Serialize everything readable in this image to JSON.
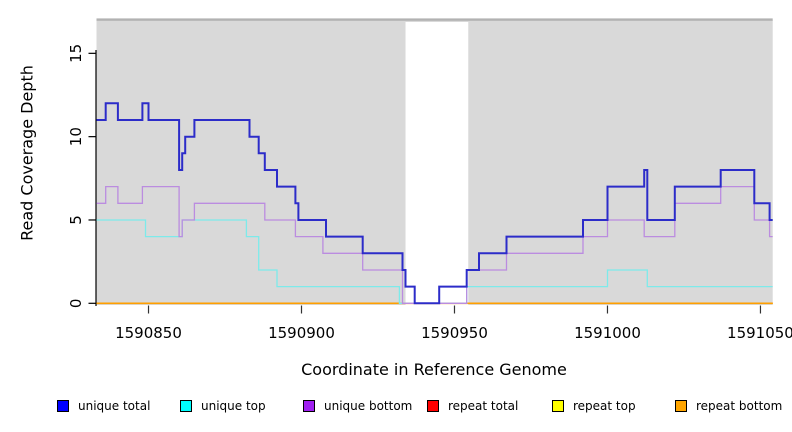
{
  "chart_data": {
    "type": "line",
    "subtype": "step-coverage-plot",
    "title": "",
    "xlabel": "Coordinate in Reference Genome",
    "ylabel": "Read Coverage Depth",
    "xlim": [
      1590833,
      1591054
    ],
    "ylim": [
      0,
      17
    ],
    "grid": false,
    "x_tick_values": [
      1590850,
      1590900,
      1590950,
      1591000,
      1591050
    ],
    "x_tick_labels": [
      "1590850",
      "1590900",
      "1590950",
      "1591000",
      "1591050"
    ],
    "y_tick_values": [
      0,
      5,
      10,
      15
    ],
    "y_tick_labels": [
      "0",
      "5",
      "10",
      "15"
    ],
    "plot_bg_color": "#d9d9d9",
    "top_border_color": "#b2b2b2",
    "highlight_band": {
      "x0": 1590934,
      "x1": 1590954.5,
      "color": "#ffffff"
    },
    "series": [
      {
        "name": "repeat total",
        "color": "#ff0000",
        "width": 1.3,
        "steps": [
          [
            1590833,
            0
          ]
        ]
      },
      {
        "name": "repeat top",
        "color": "#ffff00",
        "width": 1.3,
        "steps": [
          [
            1590833,
            0
          ]
        ]
      },
      {
        "name": "repeat bottom",
        "color": "#ff9f00",
        "width": 1.6,
        "steps": [
          [
            1590833,
            0
          ]
        ]
      },
      {
        "name": "unique top",
        "color": "#7deaea",
        "width": 1.3,
        "steps": [
          [
            1590833,
            5
          ],
          [
            1590849,
            4
          ],
          [
            1590861,
            5
          ],
          [
            1590882,
            4
          ],
          [
            1590886,
            2
          ],
          [
            1590892,
            1
          ],
          [
            1590932,
            0
          ],
          [
            1590954,
            1
          ],
          [
            1591000,
            2
          ],
          [
            1591013,
            1
          ]
        ]
      },
      {
        "name": "unique bottom",
        "color": "#bb8ce0",
        "width": 1.3,
        "steps": [
          [
            1590833,
            6
          ],
          [
            1590836,
            7
          ],
          [
            1590840,
            6
          ],
          [
            1590848,
            7
          ],
          [
            1590860,
            4
          ],
          [
            1590861,
            5
          ],
          [
            1590865,
            6
          ],
          [
            1590888,
            5
          ],
          [
            1590898,
            4
          ],
          [
            1590907,
            3
          ],
          [
            1590920,
            2
          ],
          [
            1590933,
            0
          ],
          [
            1590954,
            2
          ],
          [
            1590967,
            3
          ],
          [
            1590992,
            4
          ],
          [
            1591000,
            5
          ],
          [
            1591012,
            4
          ],
          [
            1591022,
            6
          ],
          [
            1591037,
            7
          ],
          [
            1591048,
            5
          ],
          [
            1591053,
            4
          ]
        ]
      },
      {
        "name": "unique total",
        "color": "#2c2cc9",
        "width": 2.0,
        "steps": [
          [
            1590833,
            11
          ],
          [
            1590836,
            12
          ],
          [
            1590840,
            11
          ],
          [
            1590848,
            12
          ],
          [
            1590850,
            11
          ],
          [
            1590860,
            8
          ],
          [
            1590861,
            9
          ],
          [
            1590862,
            10
          ],
          [
            1590865,
            11
          ],
          [
            1590883,
            10
          ],
          [
            1590886,
            9
          ],
          [
            1590888,
            8
          ],
          [
            1590892,
            7
          ],
          [
            1590898,
            6
          ],
          [
            1590899,
            5
          ],
          [
            1590908,
            4
          ],
          [
            1590920,
            3
          ],
          [
            1590933,
            2
          ],
          [
            1590934,
            1
          ],
          [
            1590937,
            0
          ],
          [
            1590945,
            1
          ],
          [
            1590954,
            2
          ],
          [
            1590958,
            3
          ],
          [
            1590967,
            4
          ],
          [
            1590992,
            5
          ],
          [
            1591000,
            7
          ],
          [
            1591012,
            8
          ],
          [
            1591013,
            5
          ],
          [
            1591022,
            7
          ],
          [
            1591037,
            8
          ],
          [
            1591048,
            6
          ],
          [
            1591053,
            5
          ]
        ]
      }
    ],
    "legend": {
      "position": "bottom",
      "items": [
        {
          "label": "unique total",
          "swatch": "#0000ff"
        },
        {
          "label": "unique top",
          "swatch": "#00ffff"
        },
        {
          "label": "unique bottom",
          "swatch": "#a020f0"
        },
        {
          "label": "repeat total",
          "swatch": "#ff0000"
        },
        {
          "label": "repeat top",
          "swatch": "#ffff00"
        },
        {
          "label": "repeat bottom",
          "swatch": "#ffa500"
        }
      ]
    }
  }
}
